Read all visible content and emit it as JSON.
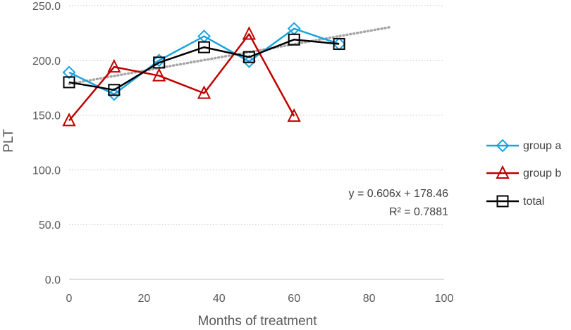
{
  "chart_data": {
    "type": "line",
    "title": "",
    "xlabel": "Months of treatment",
    "ylabel": "PLT",
    "xlim": [
      0,
      100
    ],
    "ylim": [
      0,
      250
    ],
    "x_ticks": [
      "0",
      "20",
      "40",
      "60",
      "80",
      "100"
    ],
    "y_ticks": [
      "0.0",
      "50.0",
      "100.0",
      "150.0",
      "200.0",
      "250.0"
    ],
    "grid": "horizontal dotted",
    "legend_position": "right",
    "series": [
      {
        "name": "group a",
        "color": "#1aa3e0",
        "marker": "diamond",
        "x": [
          0,
          12,
          24,
          36,
          48,
          60,
          72
        ],
        "values": [
          189,
          169,
          200,
          222,
          199,
          229,
          215
        ]
      },
      {
        "name": "group b",
        "color": "#c00000",
        "marker": "triangle",
        "x": [
          0,
          12,
          24,
          36,
          48,
          60
        ],
        "values": [
          145,
          194,
          186,
          170,
          224,
          149
        ]
      },
      {
        "name": "total",
        "color": "#000000",
        "marker": "square",
        "x": [
          0,
          12,
          24,
          36,
          48,
          60,
          72
        ],
        "values": [
          180,
          173,
          198,
          212,
          203,
          219,
          215
        ]
      }
    ],
    "trendline": {
      "type": "linear",
      "color": "#a6a6a6",
      "slope": 0.606,
      "intercept": 178.46,
      "x_range": [
        0,
        86
      ],
      "equation_text": "y = 0.606x + 178.46",
      "r2_text": "R² = 0.7881"
    }
  }
}
